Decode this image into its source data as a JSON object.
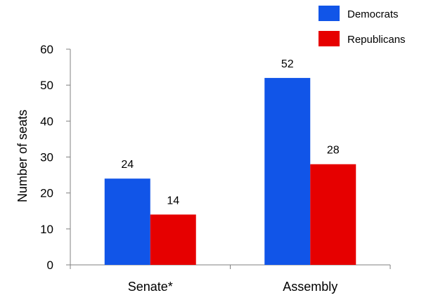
{
  "chart_data": {
    "type": "bar",
    "categories": [
      "Senate*",
      "Assembly"
    ],
    "series": [
      {
        "name": "Democrats",
        "values": [
          24,
          52
        ],
        "color": "#1155e8"
      },
      {
        "name": "Republicans",
        "values": [
          14,
          28
        ],
        "color": "#e60000"
      }
    ],
    "title": "",
    "xlabel": "",
    "ylabel": "Number of seats",
    "ylim": [
      0,
      60
    ],
    "yticks": [
      0,
      10,
      20,
      30,
      40,
      50,
      60
    ],
    "grid": false,
    "legend": "top-right",
    "data_labels": true
  }
}
